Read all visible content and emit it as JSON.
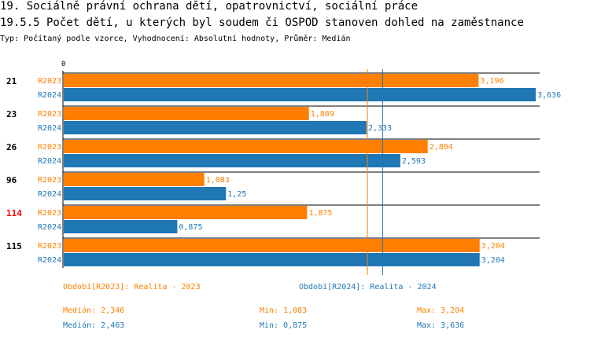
{
  "header": {
    "title": "19. Sociálně právní ochrana dětí, opatrovnictví, sociální práce",
    "subtitle": "19.5.5 Počet dětí, u kterých byl soudem či OSPOD stanoven dohled na zaměstnance",
    "meta": "Typ: Počítaný podle vzorce, Vyhodnocení: Absolutní hodnoty, Průměr: Medián"
  },
  "colors": {
    "s2023": "#ff7f00",
    "s2024": "#1f77b4",
    "highlight": "#ff0000"
  },
  "chart_data": {
    "type": "bar",
    "orientation": "horizontal",
    "axis_zero_label": "0",
    "xlim": [
      0,
      3.636
    ],
    "categories": [
      "21",
      "23",
      "26",
      "96",
      "114",
      "115"
    ],
    "highlighted_category": "114",
    "series": [
      {
        "name": "R2023",
        "values": [
          3.196,
          1.889,
          2.804,
          1.083,
          1.875,
          3.204
        ],
        "labels": [
          "3,196",
          "1,889",
          "2,804",
          "1,083",
          "1,875",
          "3,204"
        ]
      },
      {
        "name": "R2024",
        "values": [
          3.636,
          2.333,
          2.593,
          1.25,
          0.875,
          3.204
        ],
        "labels": [
          "3,636",
          "2,333",
          "2,593",
          "1,25",
          "0,875",
          "3,204"
        ]
      }
    ],
    "median_lines": [
      {
        "series": "R2023",
        "value": 2.346
      },
      {
        "series": "R2024",
        "value": 2.463
      }
    ]
  },
  "legend": {
    "s2023_period": "Období[R2023]: Realita - 2023",
    "s2024_period": "Období[R2024]: Realita - 2024",
    "s2023_median": "Medián: 2,346",
    "s2023_min": "Min: 1,083",
    "s2023_max": "Max: 3,204",
    "s2024_median": "Medián: 2,463",
    "s2024_min": "Min: 0,875",
    "s2024_max": "Max: 3,636"
  }
}
